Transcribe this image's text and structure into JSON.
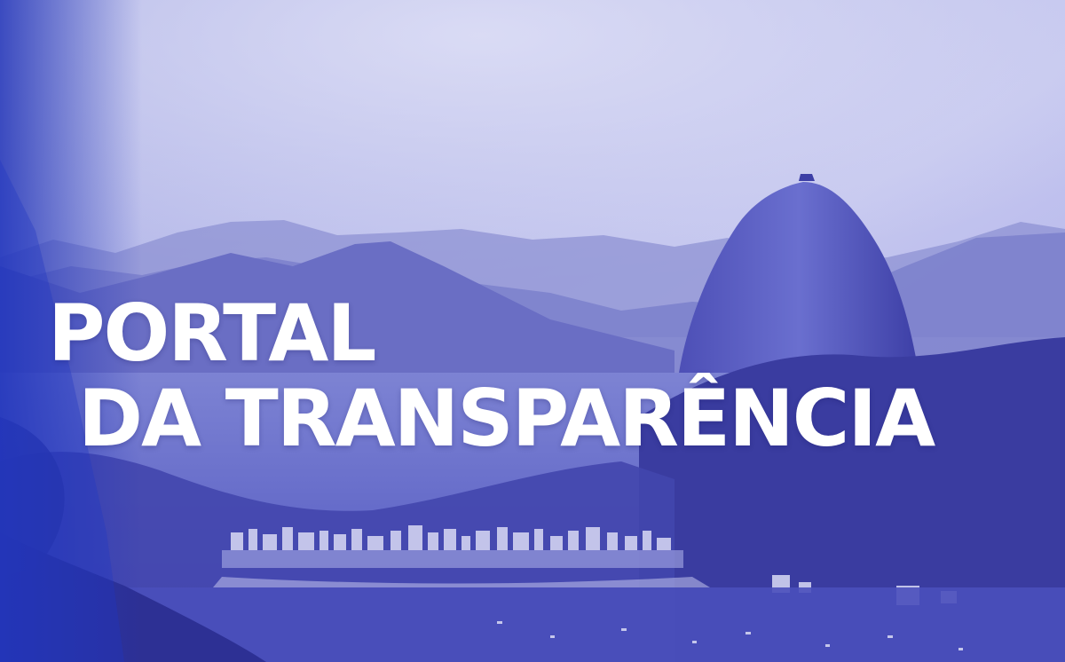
{
  "banner": {
    "title_line1": "PORTAL",
    "title_line2": "DA TRANSPARÊNCIA"
  },
  "background": {
    "description_kind": "photo",
    "tint_color": "#5a5fd0",
    "sky_color": "#c9cbee"
  }
}
